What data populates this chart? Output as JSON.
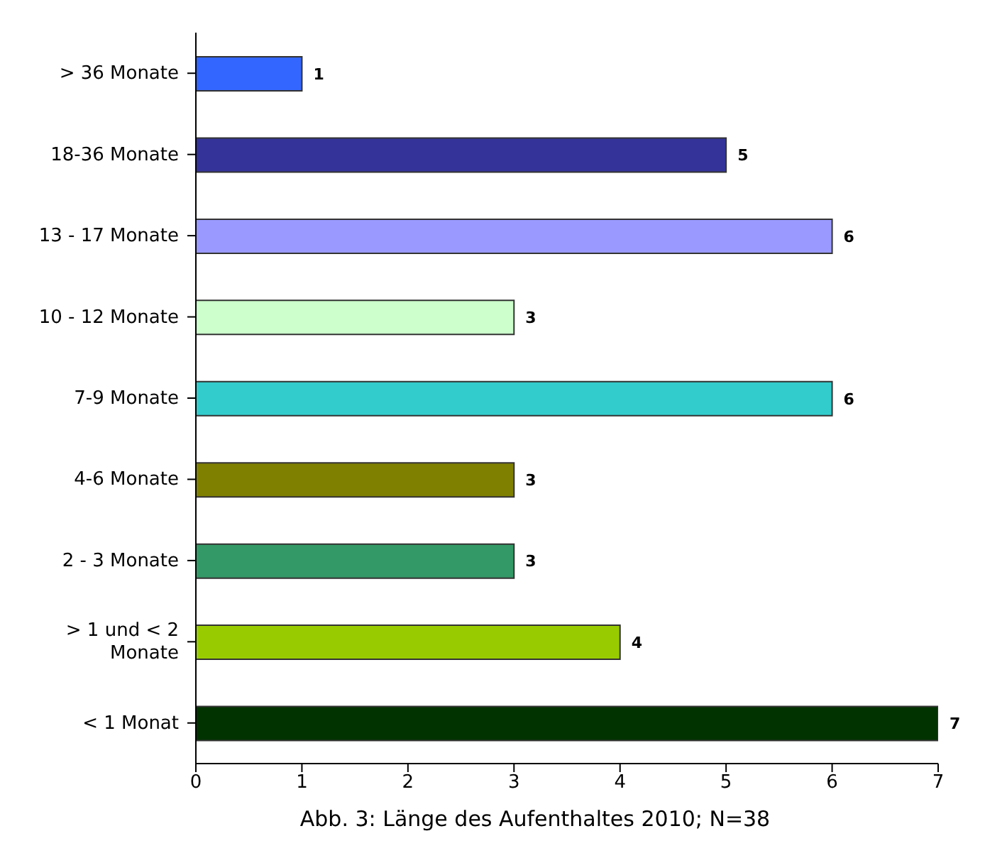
{
  "chart_data": {
    "type": "bar",
    "orientation": "horizontal",
    "categories": [
      "> 36 Monate",
      "18-36 Monate",
      "13 - 17 Monate",
      "10 - 12 Monate",
      "7-9 Monate",
      "4-6 Monate",
      "2 - 3 Monate",
      "> 1 und < 2 Monate",
      "< 1 Monat"
    ],
    "values": [
      1,
      5,
      6,
      3,
      6,
      3,
      3,
      4,
      7
    ],
    "colors": [
      "#3366ff",
      "#333399",
      "#9999ff",
      "#ccffcc",
      "#33cccc",
      "#808000",
      "#339966",
      "#99cc00",
      "#003300"
    ],
    "xlim": [
      0,
      7
    ],
    "xticks": [
      0,
      1,
      2,
      3,
      4,
      5,
      6,
      7
    ],
    "data_labels": true,
    "grid": false,
    "legend": false,
    "annotations": [
      "Abb. 3: Länge des Aufenthaltes 2010; N=38"
    ]
  }
}
